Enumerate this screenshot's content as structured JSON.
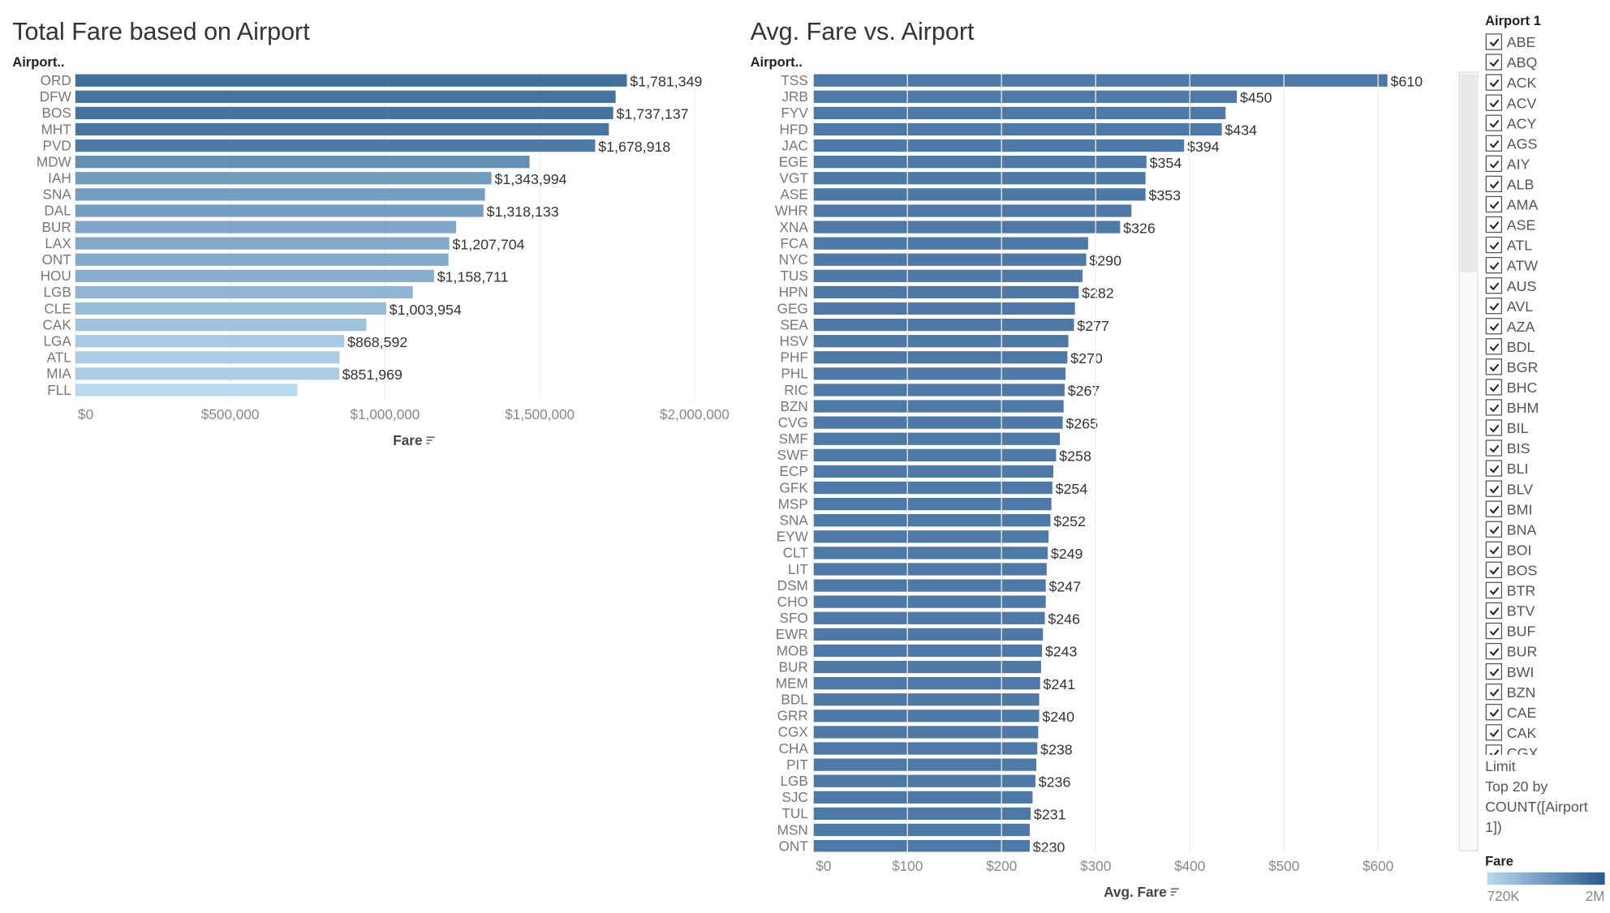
{
  "chart_data": [
    {
      "type": "hbar",
      "title": "Total Fare based on Airport",
      "row_header": "Airport..",
      "x_title": "Fare",
      "categories": [
        "ORD",
        "DFW",
        "BOS",
        "MHT",
        "PVD",
        "MDW",
        "IAH",
        "SNA",
        "DAL",
        "BUR",
        "LAX",
        "ONT",
        "HOU",
        "LGB",
        "CLE",
        "CAK",
        "LGA",
        "ATL",
        "MIA",
        "FLL"
      ],
      "values": [
        1781349,
        1745000,
        1737137,
        1723000,
        1678918,
        1467000,
        1343994,
        1323000,
        1318133,
        1230000,
        1207704,
        1205000,
        1158711,
        1090000,
        1003954,
        940000,
        868592,
        853000,
        851969,
        717000
      ],
      "value_labels": [
        "$1,781,349",
        null,
        "$1,737,137",
        null,
        "$1,678,918",
        null,
        "$1,343,994",
        null,
        "$1,318,133",
        null,
        "$1,207,704",
        null,
        "$1,158,711",
        null,
        "$1,003,954",
        null,
        "$868,592",
        null,
        "$851,969",
        null
      ],
      "color_by": "color_legend",
      "xlim": [
        0,
        2150000
      ],
      "xticks": [
        {
          "value": 0,
          "label": "$0"
        },
        {
          "value": 500000,
          "label": "$500,000"
        },
        {
          "value": 1000000,
          "label": "$1,000,000"
        },
        {
          "value": 1500000,
          "label": "$1,500,000"
        },
        {
          "value": 2000000,
          "label": "$2,000,000"
        }
      ],
      "grid": true
    },
    {
      "type": "hbar",
      "title": "Avg. Fare vs. Airport",
      "row_header": "Airport..",
      "x_title": "Avg. Fare",
      "color": "#4e79a7",
      "categories": [
        "TSS",
        "JRB",
        "FYV",
        "HFD",
        "JAC",
        "EGE",
        "VGT",
        "ASE",
        "WHR",
        "XNA",
        "FCA",
        "NYC",
        "TUS",
        "HPN",
        "GEG",
        "SEA",
        "HSV",
        "PHF",
        "PHL",
        "RIC",
        "BZN",
        "CVG",
        "SMF",
        "SWF",
        "ECP",
        "GFK",
        "MSP",
        "SNA",
        "EYW",
        "CLT",
        "LIT",
        "DSM",
        "CHO",
        "SFO",
        "EWR",
        "MOB",
        "BUR",
        "MEM",
        "BDL",
        "GRR",
        "CGX",
        "CHA",
        "PIT",
        "LGB",
        "SJC",
        "TUL",
        "MSN",
        "ONT"
      ],
      "values": [
        610,
        450,
        438,
        434,
        394,
        354,
        353,
        353,
        338,
        326,
        292,
        290,
        286,
        282,
        278,
        277,
        271,
        270,
        268,
        267,
        266,
        265,
        262,
        258,
        255,
        254,
        253,
        252,
        250,
        249,
        248,
        247,
        247,
        246,
        244,
        243,
        242,
        241,
        240,
        240,
        239,
        238,
        237,
        236,
        233,
        231,
        230,
        230
      ],
      "value_labels": [
        "$610",
        "$450",
        null,
        "$434",
        "$394",
        "$354",
        null,
        "$353",
        null,
        "$326",
        null,
        "$290",
        null,
        "$282",
        null,
        "$277",
        null,
        "$270",
        null,
        "$267",
        null,
        "$265",
        null,
        "$258",
        null,
        "$254",
        null,
        "$252",
        null,
        "$249",
        null,
        "$247",
        null,
        "$246",
        null,
        "$243",
        null,
        "$241",
        null,
        "$240",
        null,
        "$238",
        null,
        "$236",
        null,
        "$231",
        null,
        "$230"
      ],
      "xlim": [
        0,
        660
      ],
      "xticks": [
        {
          "value": 0,
          "label": "$0"
        },
        {
          "value": 100,
          "label": "$100"
        },
        {
          "value": 200,
          "label": "$200"
        },
        {
          "value": 300,
          "label": "$300"
        },
        {
          "value": 400,
          "label": "$400"
        },
        {
          "value": 500,
          "label": "$500"
        },
        {
          "value": 600,
          "label": "$600"
        }
      ],
      "grid": true
    }
  ],
  "filter": {
    "title": "Airport 1",
    "items": [
      "ABE",
      "ABQ",
      "ACK",
      "ACV",
      "ACY",
      "AGS",
      "AIY",
      "ALB",
      "AMA",
      "ASE",
      "ATL",
      "ATW",
      "AUS",
      "AVL",
      "AZA",
      "BDL",
      "BGR",
      "BHC",
      "BHM",
      "BIL",
      "BIS",
      "BLI",
      "BLV",
      "BMI",
      "BNA",
      "BOI",
      "BOS",
      "BTR",
      "BTV",
      "BUF",
      "BUR",
      "BWI",
      "BZN",
      "CAE",
      "CAK",
      "CGX"
    ],
    "note_lines": [
      "Limit",
      "Top 20 by",
      "COUNT([Airport",
      "1])"
    ]
  },
  "color_legend": {
    "title": "Fare",
    "min": {
      "value": 720000,
      "label": "720K"
    },
    "max": {
      "value": 2000000,
      "label": "2M"
    },
    "colors": [
      "#b9d9f0",
      "#2a5a8a"
    ]
  }
}
